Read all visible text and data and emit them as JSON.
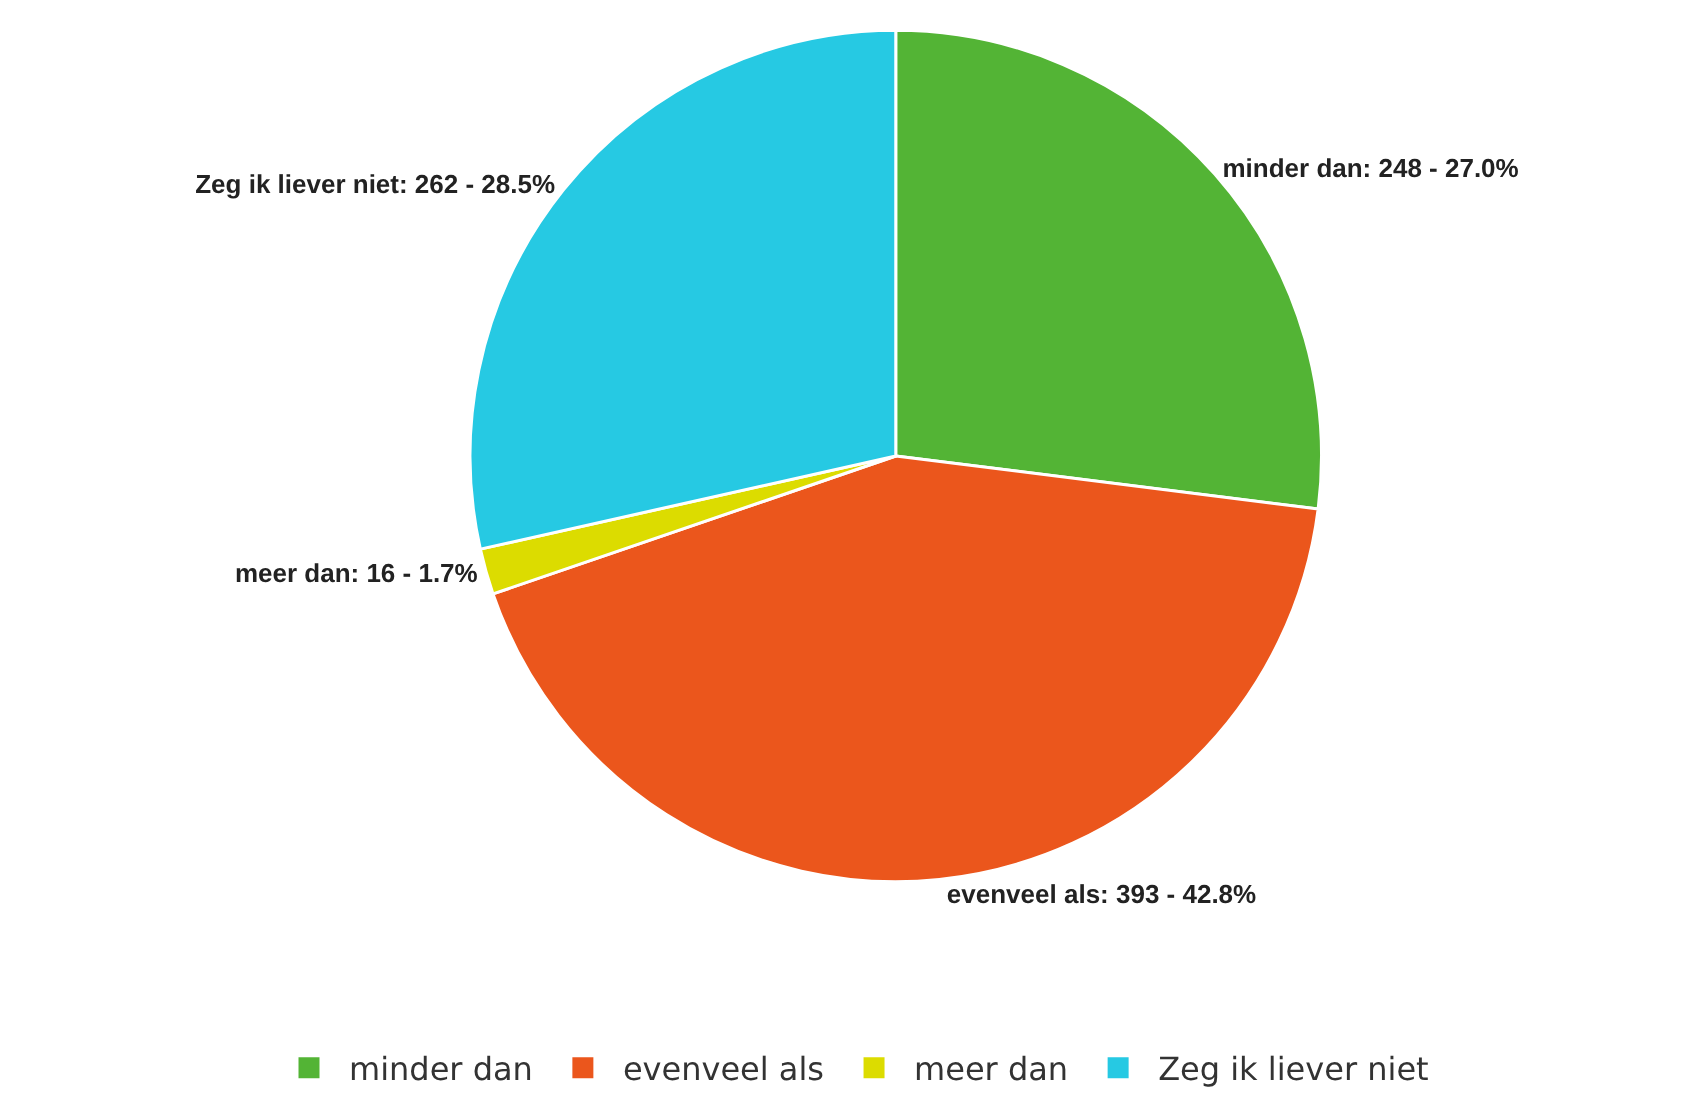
{
  "chart_data": {
    "type": "pie",
    "categories": [
      "minder dan",
      "evenveel als",
      "meer dan",
      "Zeg ik liever niet"
    ],
    "values": [
      248,
      393,
      16,
      262
    ],
    "colors": [
      "#53b435",
      "#eb561c",
      "#dcdc00",
      "#26c9e3"
    ],
    "value_labels": [
      "minder dan: 248 - 27.0%",
      "evenveel als: 393 - 42.8%",
      "meer dan: 16 - 1.7%",
      "Zeg ik liever niet: 262 - 28.5%"
    ],
    "legend": "bottom"
  }
}
